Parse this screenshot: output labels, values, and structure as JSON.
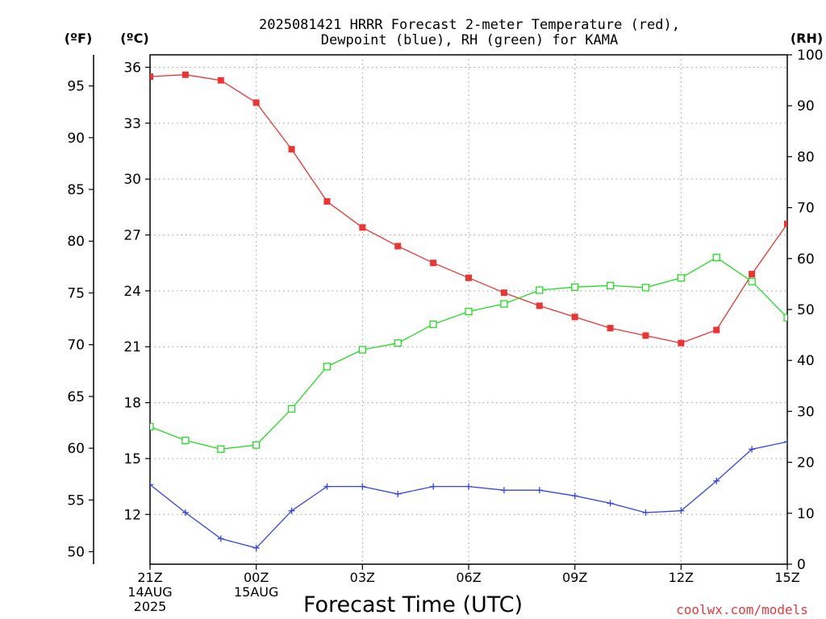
{
  "chart_data": {
    "type": "line",
    "title_line1": "2025081421 HRRR Forecast 2-meter Temperature (red),",
    "title_line2": "Dewpoint (blue), RH (green) for KAMA",
    "xlabel": "Forecast Time (UTC)",
    "watermark": "coolwx.com/models",
    "unit_labels": {
      "f": "(ºF)",
      "c": "(ºC)",
      "rh": "(RH)"
    },
    "x_ticks": [
      {
        "hour": 0,
        "lines": [
          "21Z",
          "14AUG",
          "2025"
        ]
      },
      {
        "hour": 3,
        "lines": [
          "00Z",
          "15AUG"
        ]
      },
      {
        "hour": 6,
        "lines": [
          "03Z"
        ]
      },
      {
        "hour": 9,
        "lines": [
          "06Z"
        ]
      },
      {
        "hour": 12,
        "lines": [
          "09Z"
        ]
      },
      {
        "hour": 15,
        "lines": [
          "12Z"
        ]
      },
      {
        "hour": 18,
        "lines": [
          "15Z"
        ]
      }
    ],
    "xlim": [
      0,
      18
    ],
    "c_axis": {
      "min": 9.33,
      "max": 36.67,
      "ticks": [
        12,
        15,
        18,
        21,
        24,
        27,
        30,
        33,
        36
      ]
    },
    "f_axis": {
      "ticks": [
        50,
        55,
        60,
        65,
        70,
        75,
        80,
        85,
        90,
        95
      ]
    },
    "rh_axis": {
      "min": 0,
      "max": 100,
      "ticks": [
        0,
        10,
        20,
        30,
        40,
        50,
        60,
        70,
        80,
        90,
        100
      ]
    },
    "grid": true,
    "series": [
      {
        "key": "temperature",
        "color": "#ee3333",
        "marker": "filled-square",
        "axis": "c",
        "values": [
          35.5,
          35.6,
          35.3,
          34.1,
          31.6,
          28.8,
          27.4,
          26.4,
          25.5,
          24.7,
          23.9,
          23.2,
          22.6,
          22.0,
          21.6,
          21.2,
          21.9,
          24.9,
          27.6
        ]
      },
      {
        "key": "dewpoint",
        "color": "#3344ee",
        "marker": "plus",
        "axis": "c",
        "values": [
          13.6,
          12.1,
          10.7,
          10.2,
          12.2,
          13.5,
          13.5,
          13.1,
          13.5,
          13.5,
          13.3,
          13.3,
          13.0,
          12.6,
          12.1,
          12.2,
          13.8,
          15.5,
          15.9
        ]
      },
      {
        "key": "rh",
        "color": "#22dd22",
        "marker": "open-square",
        "axis": "rh",
        "values": [
          27.0,
          24.3,
          22.6,
          23.4,
          30.5,
          38.8,
          42.1,
          43.4,
          47.1,
          49.6,
          51.1,
          53.8,
          54.4,
          54.7,
          54.3,
          56.2,
          60.2,
          55.5,
          48.4
        ]
      }
    ]
  }
}
